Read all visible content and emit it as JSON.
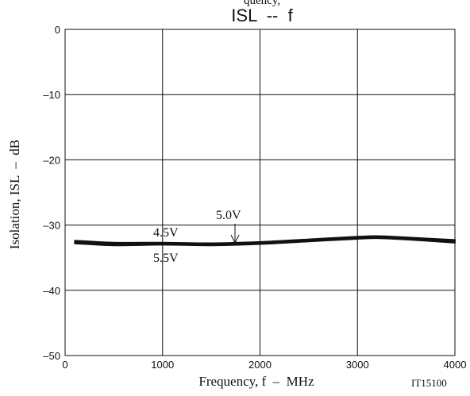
{
  "chart_data": {
    "type": "line",
    "title": "ISL  --  f",
    "xlabel": "Frequency, f  –  MHz",
    "ylabel": "Isolation, ISL  –  dB",
    "xlim": [
      0,
      4000
    ],
    "ylim": [
      -50,
      0
    ],
    "x_ticks": [
      "0",
      "1000",
      "2000",
      "3000",
      "4000"
    ],
    "y_ticks": [
      "0",
      "–10",
      "–20",
      "–30",
      "–40",
      "–50"
    ],
    "grid": true,
    "series": [
      {
        "name": "4.5V",
        "x": [
          100,
          500,
          1000,
          1500,
          2000,
          2500,
          3000,
          3200,
          3500,
          4000
        ],
        "y": [
          -32.4,
          -32.7,
          -32.7,
          -32.8,
          -32.6,
          -32.2,
          -31.8,
          -31.7,
          -31.9,
          -32.3
        ]
      },
      {
        "name": "5.0V",
        "x": [
          100,
          500,
          1000,
          1500,
          2000,
          2500,
          3000,
          3200,
          3500,
          4000
        ],
        "y": [
          -32.6,
          -32.9,
          -32.9,
          -33.0,
          -32.8,
          -32.4,
          -32.0,
          -31.9,
          -32.1,
          -32.5
        ]
      },
      {
        "name": "5.5V",
        "x": [
          100,
          500,
          1000,
          1500,
          2000,
          2500,
          3000,
          3200,
          3500,
          4000
        ],
        "y": [
          -32.8,
          -33.1,
          -33.0,
          -33.1,
          -32.9,
          -32.5,
          -32.1,
          -32.0,
          -32.2,
          -32.7
        ]
      }
    ],
    "annotations": [
      "4.5V",
      "5.0V",
      "5.5V"
    ],
    "figure_id": "IT15100",
    "header_fragment": "quency,"
  }
}
